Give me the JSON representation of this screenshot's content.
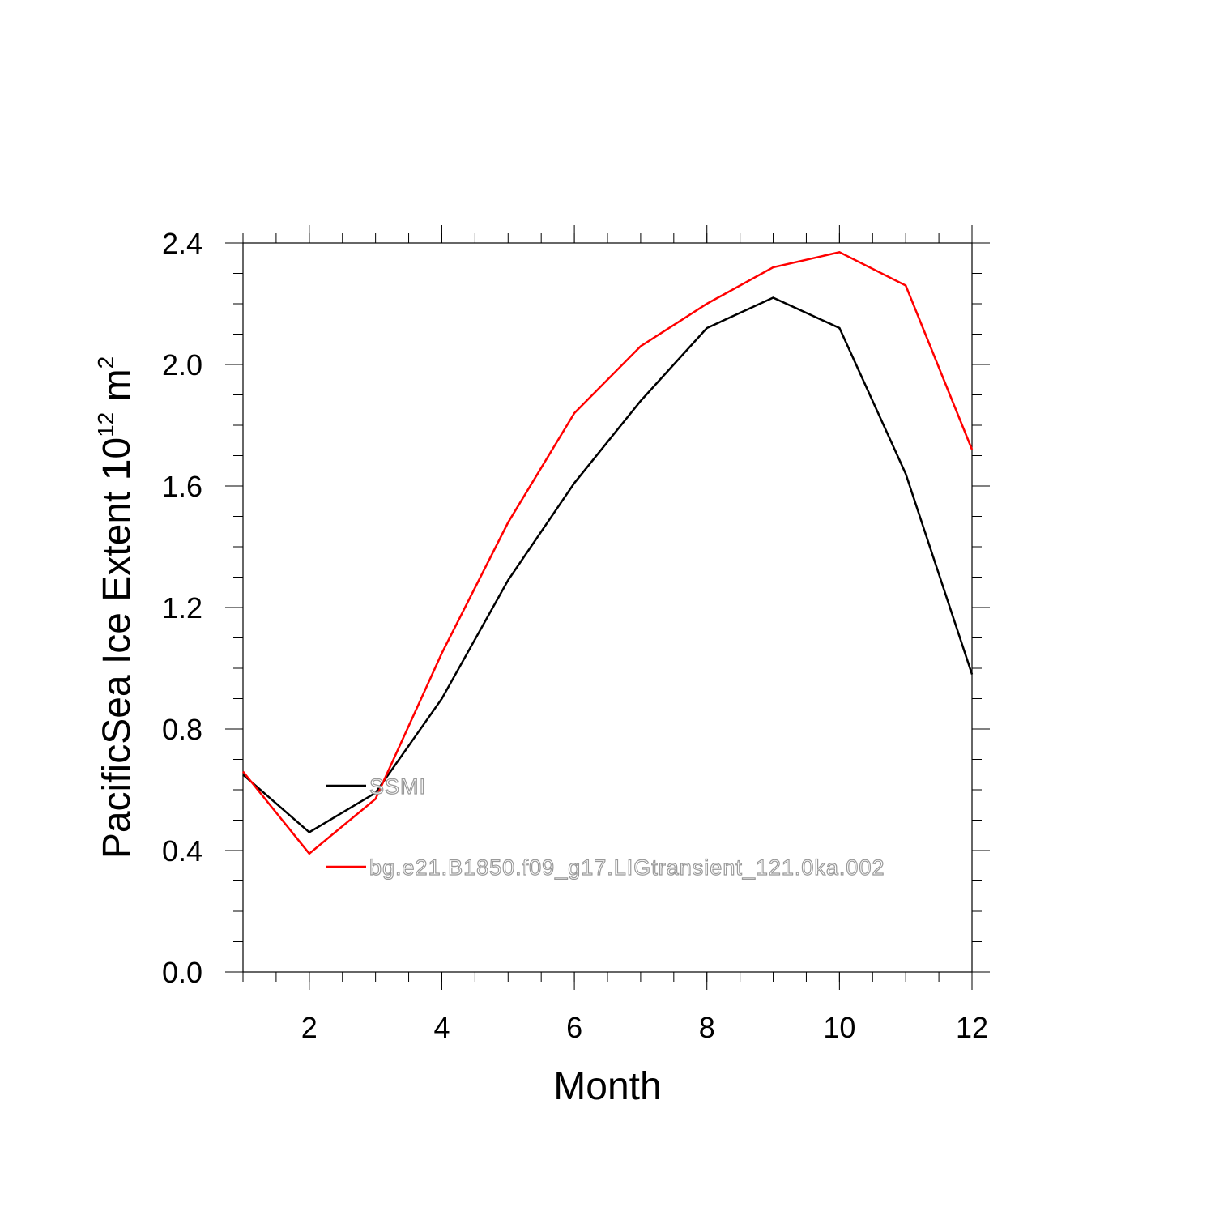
{
  "chart_data": {
    "type": "line",
    "xlabel": "Month",
    "ylabel": "PacificSea Ice Extent 10",
    "ylabel_exponent": "12",
    "ylabel_unit": " m",
    "ylabel_unit_exponent": "2",
    "xlim": [
      1,
      12
    ],
    "ylim": [
      0,
      2.4
    ],
    "x_ticks": [
      2,
      4,
      6,
      8,
      10,
      12
    ],
    "y_ticks": [
      "0.0",
      "0.4",
      "0.8",
      "1.2",
      "1.6",
      "2.0",
      "2.4"
    ],
    "grid": false,
    "legend_position": "inside-lower-left",
    "x": [
      1,
      2,
      3,
      4,
      5,
      6,
      7,
      8,
      9,
      10,
      11,
      12
    ],
    "series": [
      {
        "name": "SSMI",
        "color": "#000000",
        "values": [
          0.65,
          0.46,
          0.59,
          0.9,
          1.29,
          1.61,
          1.88,
          2.12,
          2.22,
          2.12,
          1.64,
          0.98
        ]
      },
      {
        "name": "bg.e21.B1850.f09_g17.LIGtransient_121.0ka.002",
        "color": "#ff0000",
        "values": [
          0.66,
          0.39,
          0.57,
          1.05,
          1.48,
          1.84,
          2.06,
          2.2,
          2.32,
          2.37,
          2.26,
          1.72
        ]
      }
    ]
  }
}
